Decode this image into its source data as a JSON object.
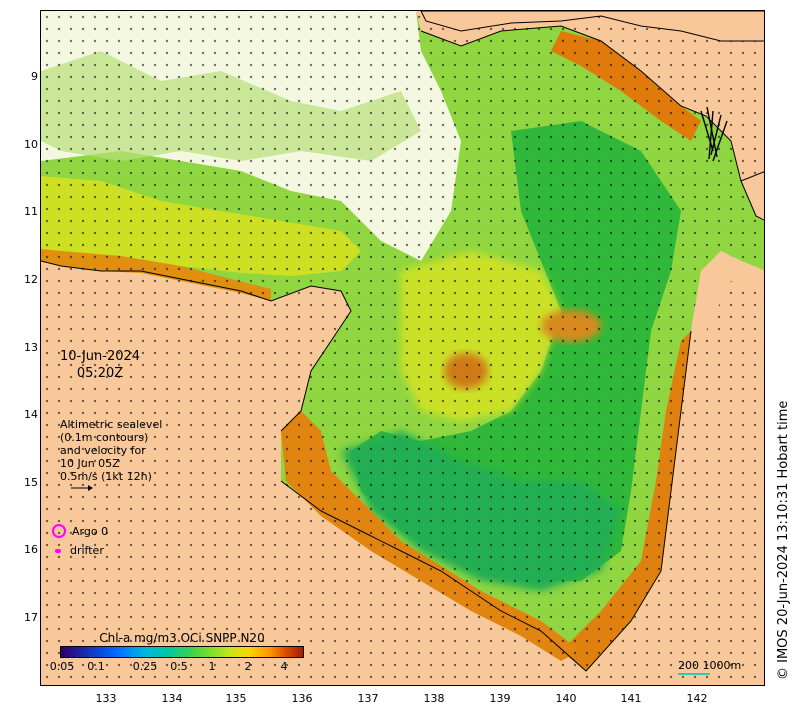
{
  "map": {
    "date": "10-Jun-2024",
    "time": "05:20Z",
    "y_ticks": [
      "9",
      "10",
      "11",
      "12",
      "13",
      "14",
      "15",
      "16",
      "17"
    ],
    "x_ticks": [
      "133",
      "134",
      "135",
      "136",
      "137",
      "138",
      "139",
      "140",
      "141",
      "142"
    ],
    "altimetry": {
      "line1": "Altimetric sealevel",
      "line2": "(0.1m contours)",
      "line3": "and velocity for",
      "line4": "10 Jun 05Z",
      "line5": "0.5m/s (1kt 12h)"
    },
    "legend": {
      "argo": "Argo 0",
      "drifter": "drifter",
      "marker_color": "#ff00ff"
    },
    "colorbar": {
      "title": "Chl-a mg/m3 OCi SNPP N20",
      "ticks": [
        "0.05",
        "0.1",
        "0.25",
        "0.5",
        "1",
        "2",
        "4"
      ]
    },
    "scale": {
      "label": "200 1000m",
      "color": "#34c8b4"
    },
    "copyright": "© IMOS 20-Jun-2024 13:10:31 Hobart time",
    "colors": {
      "land": "#f8c89a",
      "sea_green": "#3ec43a",
      "sea_yellow": "#c8e41e",
      "coastal_orange": "#e07a0a"
    }
  }
}
